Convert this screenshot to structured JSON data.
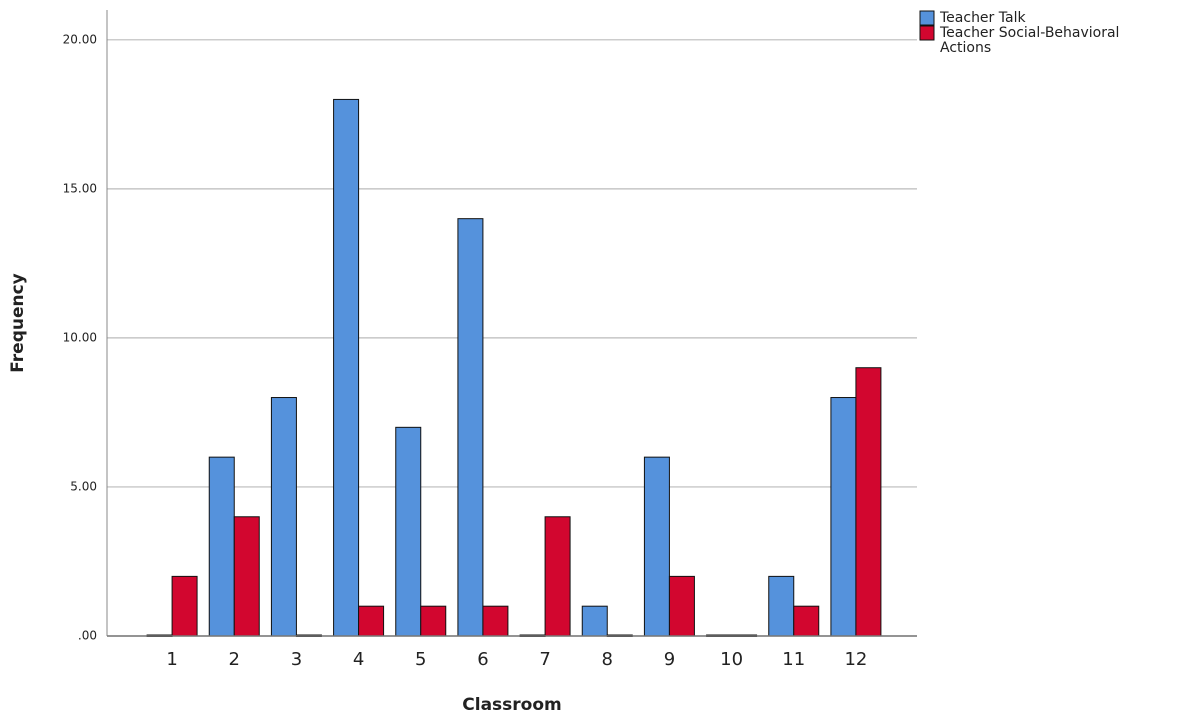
{
  "chart_data": {
    "type": "bar",
    "x_label": "Classroom",
    "y_label": "Frequency",
    "categories": [
      "1",
      "2",
      "3",
      "4",
      "5",
      "6",
      "7",
      "8",
      "9",
      "10",
      "11",
      "12"
    ],
    "series": [
      {
        "name": "Teacher Talk",
        "color": "#5592dc",
        "values": [
          0,
          6,
          8,
          18,
          7,
          14,
          0,
          1,
          6,
          0,
          2,
          8
        ]
      },
      {
        "name": "Teacher Social-Behavioral Actions",
        "color": "#d2062f",
        "values": [
          2,
          4,
          0,
          1,
          1,
          1,
          4,
          0,
          2,
          0,
          1,
          9
        ]
      }
    ],
    "ylim": [
      0,
      21
    ],
    "yticks": [
      {
        "value": 0,
        "label": ".00"
      },
      {
        "value": 5,
        "label": "5.00"
      },
      {
        "value": 10,
        "label": "10.00"
      },
      {
        "value": 15,
        "label": "15.00"
      },
      {
        "value": 20,
        "label": "20.00"
      }
    ],
    "grid": true,
    "legend": "top-right"
  }
}
